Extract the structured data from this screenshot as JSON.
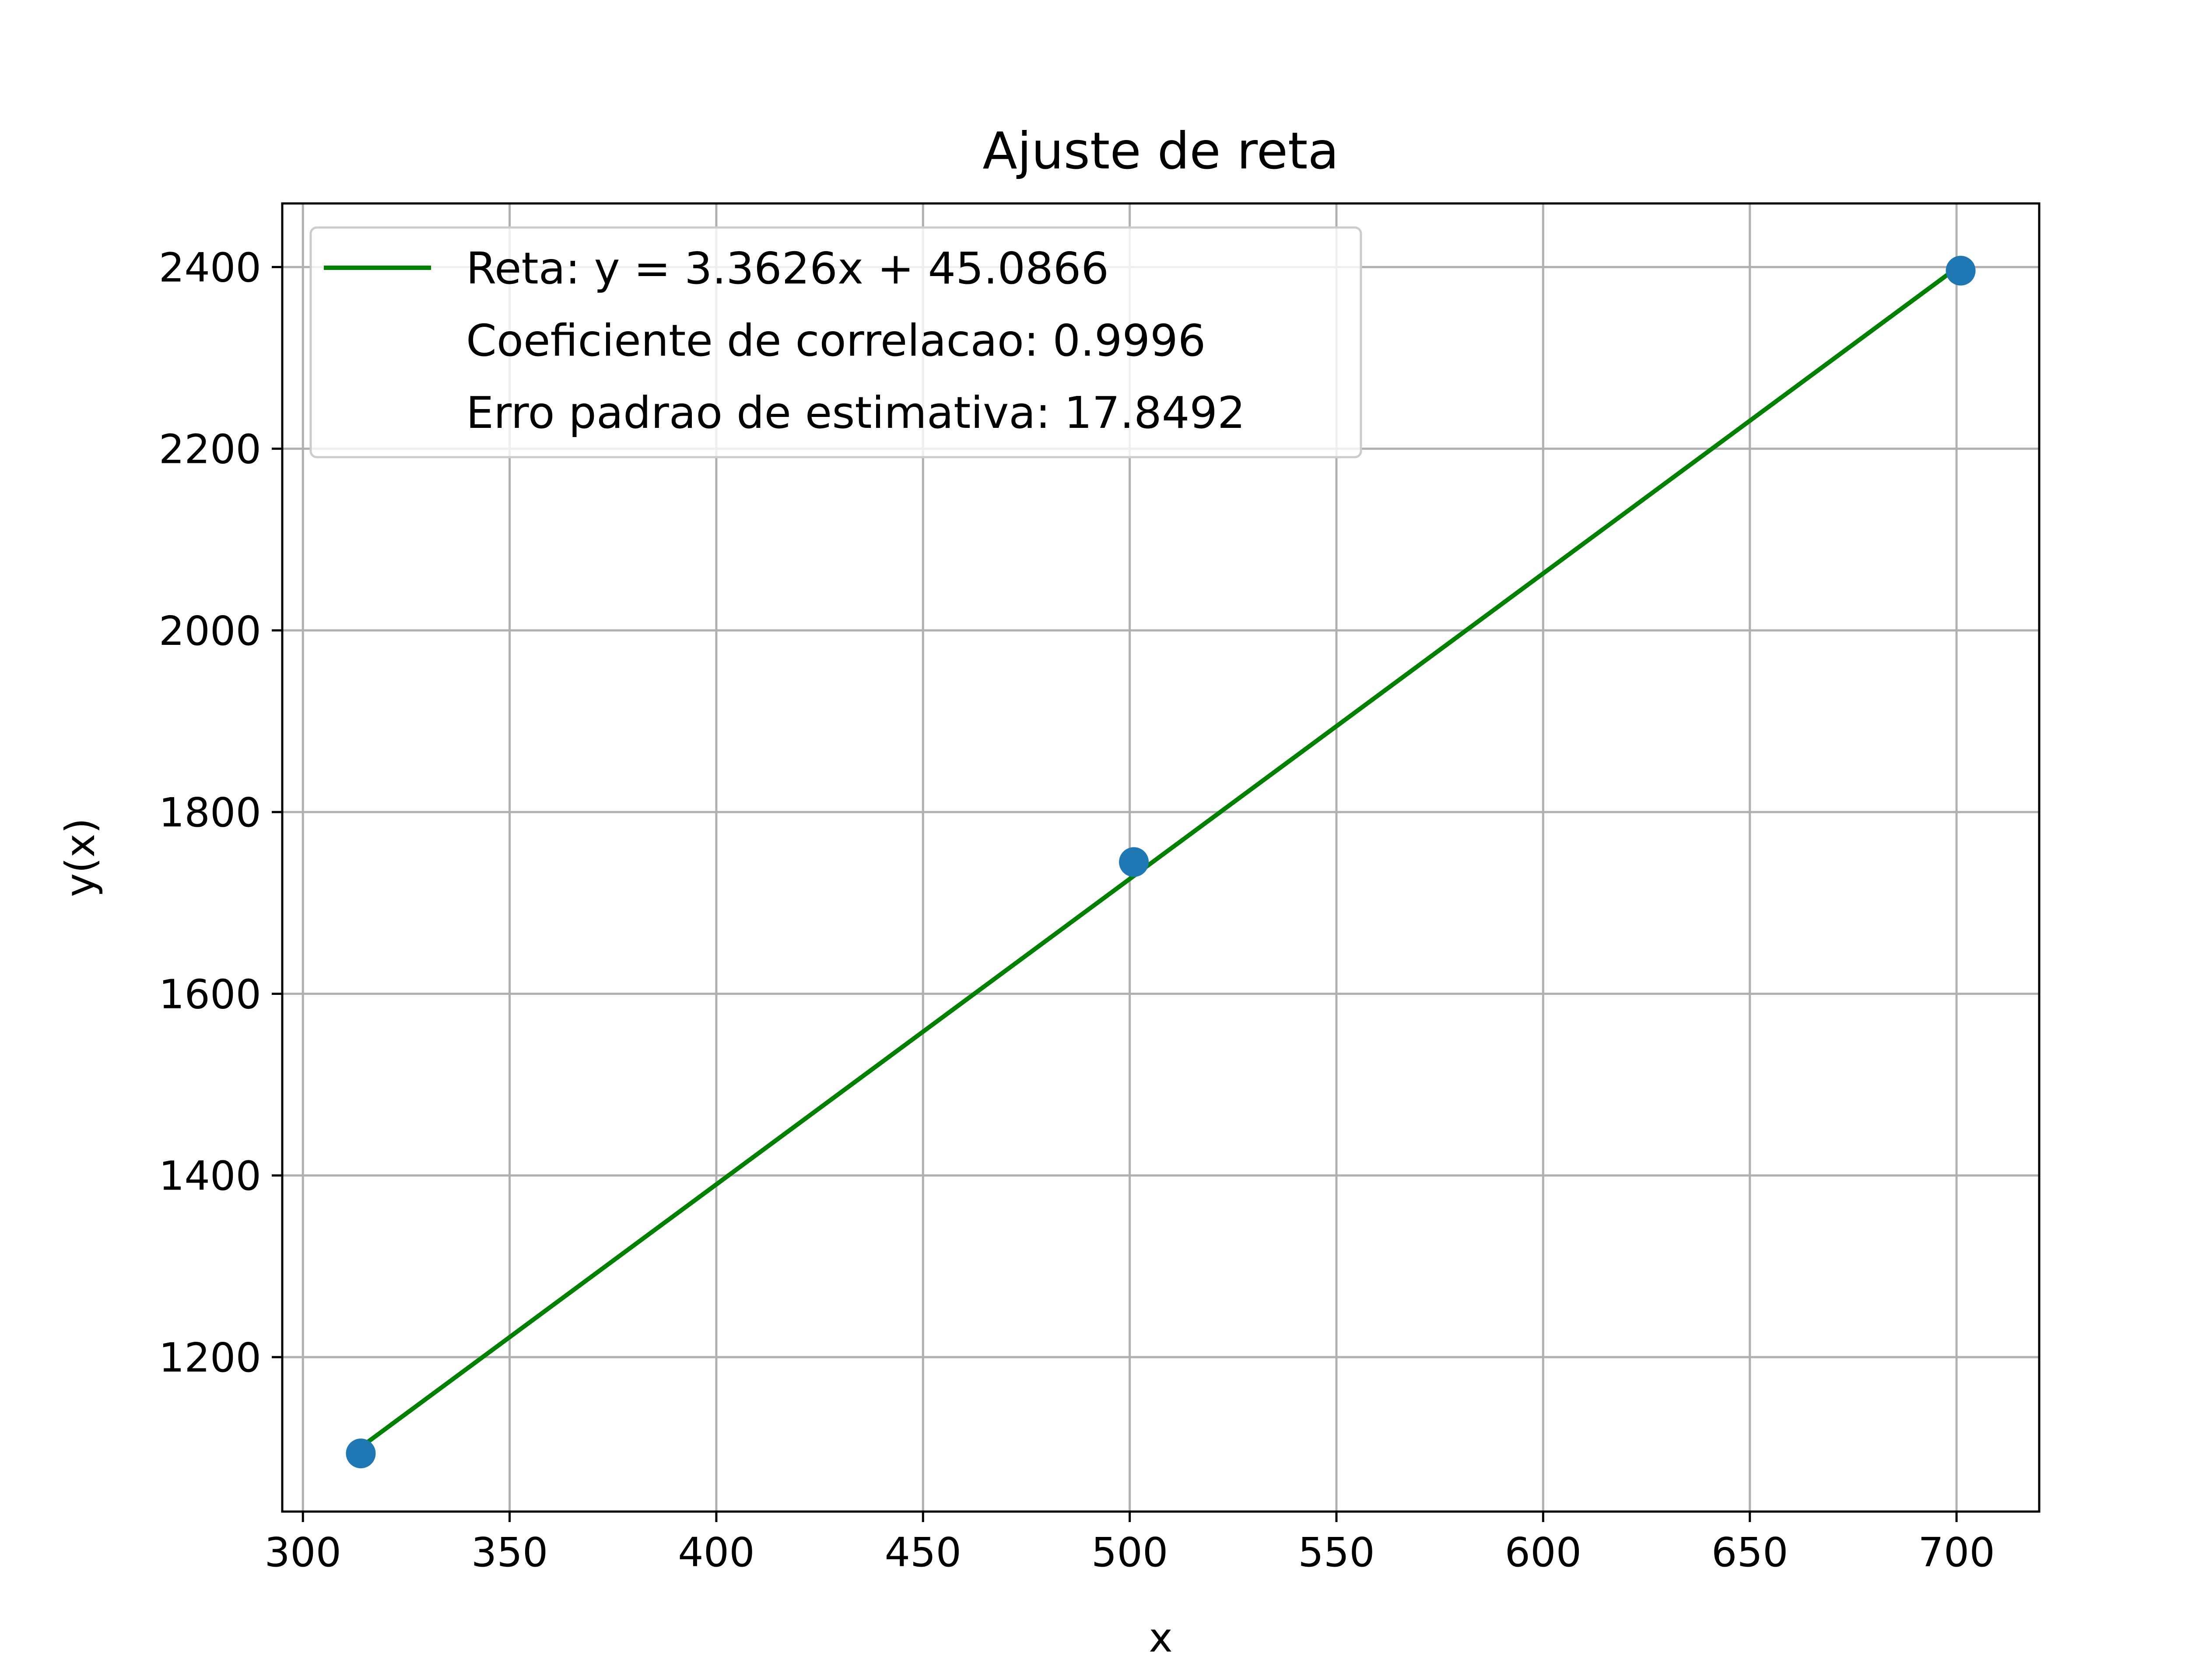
{
  "chart_data": {
    "type": "scatter",
    "title": "Ajuste de reta",
    "xlabel": "x",
    "ylabel": "y(x)",
    "xlim": [
      295,
      720
    ],
    "ylim": [
      1030,
      2470
    ],
    "x_ticks": [
      300,
      350,
      400,
      450,
      500,
      550,
      600,
      650,
      700
    ],
    "y_ticks": [
      1200,
      1400,
      1600,
      1800,
      2000,
      2200,
      2400
    ],
    "x_tick_labels": [
      "300",
      "350",
      "400",
      "450",
      "500",
      "550",
      "600",
      "650",
      "700"
    ],
    "y_tick_labels": [
      "1200",
      "1400",
      "1600",
      "1800",
      "2000",
      "2200",
      "2400"
    ],
    "grid": true,
    "legend_position": "top-left",
    "points": [
      {
        "x": 314,
        "y": 1094
      },
      {
        "x": 501,
        "y": 1745
      },
      {
        "x": 701,
        "y": 2396
      }
    ],
    "point_color": "#1f77b4",
    "fit_line": {
      "x": [
        314,
        701
      ],
      "slope": 3.3626,
      "intercept": 45.0866,
      "color": "#008000"
    },
    "legend": [
      "Reta: y = 3.3626x + 45.0866",
      "Coeficiente de correlacao: 0.9996",
      "Erro padrao de estimativa: 17.8492"
    ]
  }
}
